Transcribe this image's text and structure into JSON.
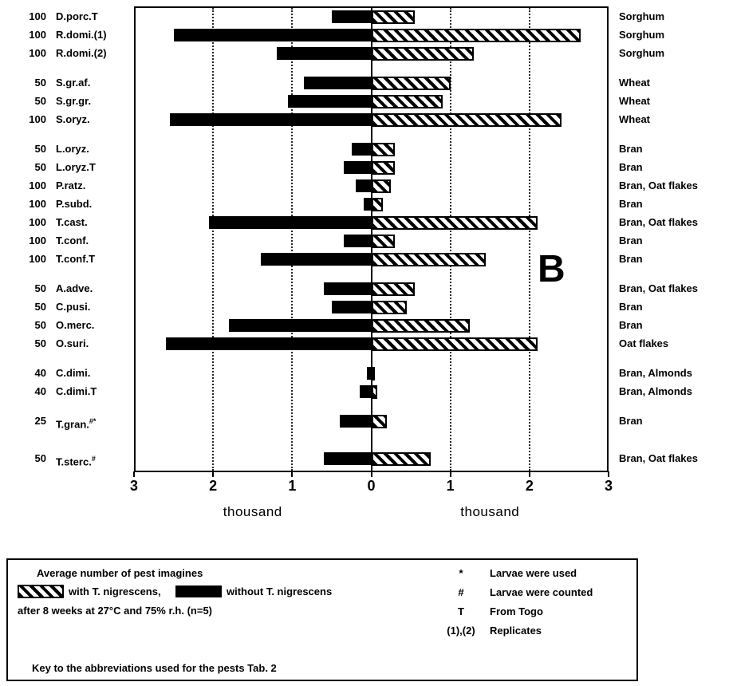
{
  "figure": {
    "panel_label": "B"
  },
  "chart_data": {
    "type": "bar",
    "orientation": "horizontal-diverging",
    "title": "",
    "unit": "thousand",
    "xlabel_left": "thousand",
    "xlabel_right": "thousand",
    "xlim": [
      -3,
      3
    ],
    "grid": "dotted vertical at ±1, ±2; solid line at 0",
    "legend_position": "bottom box",
    "axis_tick_labels": [
      "3",
      "2",
      "1",
      "0",
      "1",
      "2",
      "3"
    ],
    "axis_tick_values": [
      -3,
      -2,
      -1,
      0,
      1,
      2,
      3
    ],
    "series": [
      {
        "name": "without T. nigrescens",
        "style": "solid-black",
        "side": "left"
      },
      {
        "name": "with T. nigrescens",
        "style": "diagonal-hatch",
        "side": "right"
      }
    ],
    "rows": [
      {
        "count": "100",
        "species": "D.porc.T",
        "sup": "",
        "without": 0.5,
        "with": 0.55,
        "substrate": "Sorghum",
        "group": 0
      },
      {
        "count": "100",
        "species": "R.domi.(1)",
        "sup": "",
        "without": 2.5,
        "with": 2.65,
        "substrate": "Sorghum",
        "group": 0
      },
      {
        "count": "100",
        "species": "R.domi.(2)",
        "sup": "",
        "without": 1.2,
        "with": 1.3,
        "substrate": "Sorghum",
        "group": 0
      },
      {
        "count": "50",
        "species": "S.gr.af.",
        "sup": "",
        "without": 0.85,
        "with": 1.0,
        "substrate": "Wheat",
        "group": 1
      },
      {
        "count": "50",
        "species": "S.gr.gr.",
        "sup": "",
        "without": 1.05,
        "with": 0.9,
        "substrate": "Wheat",
        "group": 1
      },
      {
        "count": "100",
        "species": "S.oryz.",
        "sup": "",
        "without": 2.55,
        "with": 2.4,
        "substrate": "Wheat",
        "group": 1
      },
      {
        "count": "50",
        "species": "L.oryz.",
        "sup": "",
        "without": 0.25,
        "with": 0.3,
        "substrate": "Bran",
        "group": 2
      },
      {
        "count": "50",
        "species": "L.oryz.T",
        "sup": "",
        "without": 0.35,
        "with": 0.3,
        "substrate": "Bran",
        "group": 2
      },
      {
        "count": "100",
        "species": "P.ratz.",
        "sup": "",
        "without": 0.2,
        "with": 0.25,
        "substrate": "Bran, Oat flakes",
        "group": 2
      },
      {
        "count": "100",
        "species": "P.subd.",
        "sup": "",
        "without": 0.1,
        "with": 0.15,
        "substrate": "Bran",
        "group": 2
      },
      {
        "count": "100",
        "species": "T.cast.",
        "sup": "",
        "without": 2.05,
        "with": 2.1,
        "substrate": "Bran, Oat flakes",
        "group": 2
      },
      {
        "count": "100",
        "species": "T.conf.",
        "sup": "",
        "without": 0.35,
        "with": 0.3,
        "substrate": "Bran",
        "group": 2
      },
      {
        "count": "100",
        "species": "T.conf.T",
        "sup": "",
        "without": 1.4,
        "with": 1.45,
        "substrate": "Bran",
        "group": 2
      },
      {
        "count": "50",
        "species": "A.adve.",
        "sup": "",
        "without": 0.6,
        "with": 0.55,
        "substrate": "Bran, Oat flakes",
        "group": 3
      },
      {
        "count": "50",
        "species": "C.pusi.",
        "sup": "",
        "without": 0.5,
        "with": 0.45,
        "substrate": "Bran",
        "group": 3
      },
      {
        "count": "50",
        "species": "O.merc.",
        "sup": "",
        "without": 1.8,
        "with": 1.25,
        "substrate": "Bran",
        "group": 3
      },
      {
        "count": "50",
        "species": "O.suri.",
        "sup": "",
        "without": 2.6,
        "with": 2.1,
        "substrate": "Oat flakes",
        "group": 3
      },
      {
        "count": "40",
        "species": "C.dimi.",
        "sup": "",
        "without": 0.06,
        "with": 0.05,
        "substrate": "Bran, Almonds",
        "group": 4
      },
      {
        "count": "40",
        "species": "C.dimi.T",
        "sup": "",
        "without": 0.15,
        "with": 0.08,
        "substrate": "Bran, Almonds",
        "group": 4
      },
      {
        "count": "25",
        "species": "T.gran.",
        "sup": "#*",
        "without": 0.4,
        "with": 0.2,
        "substrate": "Bran",
        "group": 5
      },
      {
        "count": "50",
        "species": "T.sterc.",
        "sup": "#",
        "without": 0.6,
        "with": 0.75,
        "substrate": "Bran, Oat flakes",
        "group": 6
      }
    ]
  },
  "legend": {
    "line1": "Average number of pest imagines",
    "with_label": "with T. nigrescens,",
    "without_label": "without T. nigrescens",
    "line3": "after 8 weeks at 27°C and 75% r.h. (n=5)",
    "symbols": [
      {
        "symbol": "*",
        "meaning": "Larvae were used"
      },
      {
        "symbol": "#",
        "meaning": "Larvae were counted"
      },
      {
        "symbol": "T",
        "meaning": "From Togo"
      },
      {
        "symbol": "(1),(2)",
        "meaning": "Replicates"
      }
    ],
    "footer": "Key to the abbreviations used for the pests Tab. 2"
  }
}
